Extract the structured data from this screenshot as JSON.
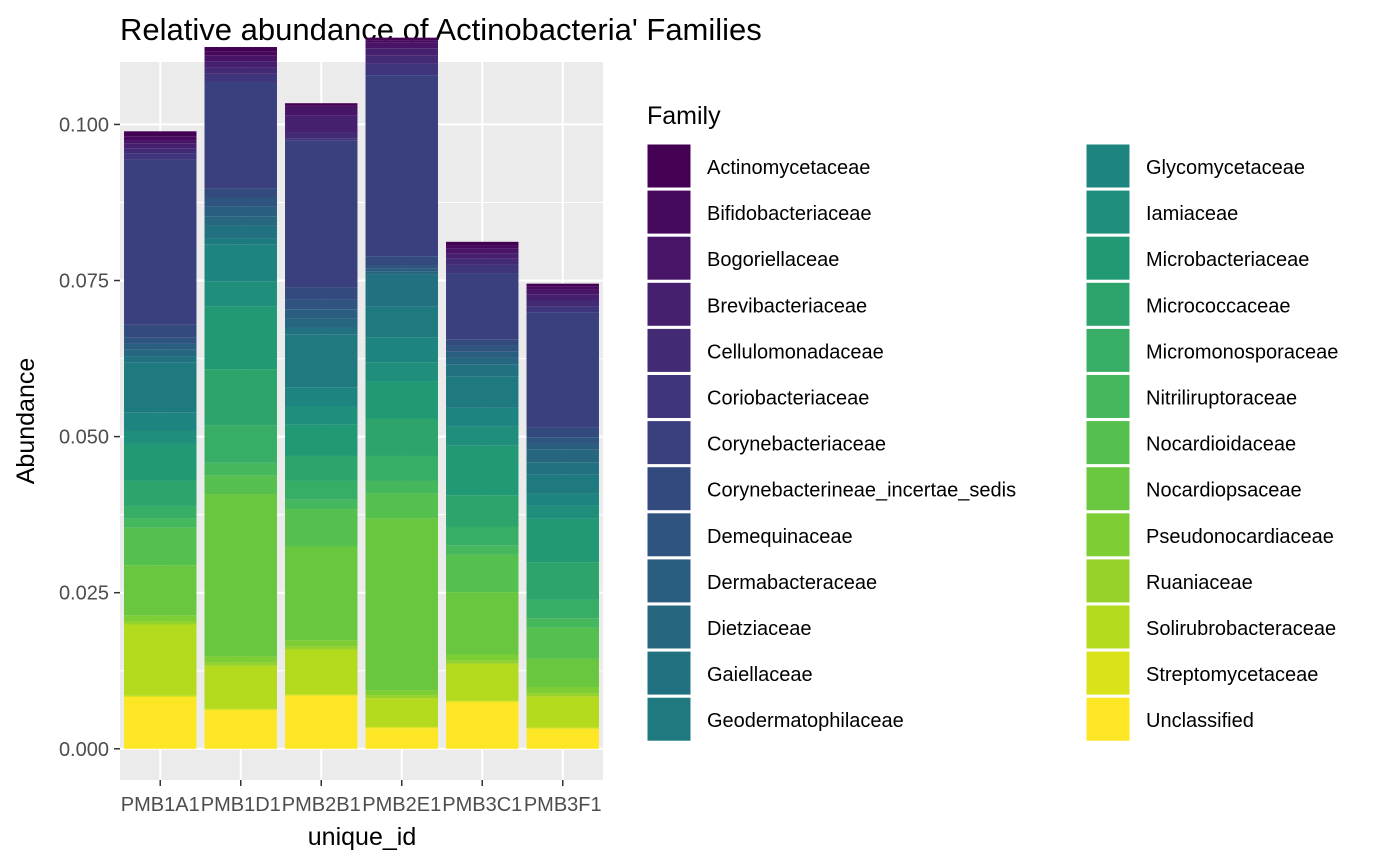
{
  "chart_data": {
    "type": "bar",
    "stacked": true,
    "title": "Relative abundance of Actinobacteria' Families",
    "xlabel": "unique_id",
    "ylabel": "Abundance",
    "ylim": [
      -0.005,
      0.11
    ],
    "yticks": [
      0.0,
      0.025,
      0.05,
      0.075,
      0.1
    ],
    "ytick_labels": [
      "0.000",
      "0.025",
      "0.050",
      "0.075",
      "0.100"
    ],
    "grid": true,
    "legend_position": "right",
    "legend_title": "Family",
    "categories": [
      "PMB1A1",
      "PMB1D1",
      "PMB2B1",
      "PMB2E1",
      "PMB3C1",
      "PMB3F1"
    ],
    "series": [
      {
        "name": "Actinomycetaceae",
        "color": "#440154",
        "values": [
          0.0008,
          0.0007,
          0.0003,
          0.0004,
          0.0006,
          0.0005
        ]
      },
      {
        "name": "Bifidobacteriaceae",
        "color": "#46095E",
        "values": [
          0.0006,
          0.0007,
          0.0003,
          0.0004,
          0.0005,
          0.0005
        ]
      },
      {
        "name": "Bogoriellaceae",
        "color": "#481467",
        "values": [
          0.0005,
          0.0009,
          0.0014,
          0.0009,
          0.0008,
          0.0007
        ]
      },
      {
        "name": "Brevibacteriaceae",
        "color": "#461F6E",
        "values": [
          0.0008,
          0.001,
          0.0027,
          0.0012,
          0.0008,
          0.001
        ]
      },
      {
        "name": "Cellulomonadaceae",
        "color": "#432A75",
        "values": [
          0.0008,
          0.001,
          0.001,
          0.0013,
          0.001,
          0.0009
        ]
      },
      {
        "name": "Coriobacteriaceae",
        "color": "#3E357C",
        "values": [
          0.001,
          0.0013,
          0.0003,
          0.0018,
          0.0013,
          0.001
        ]
      },
      {
        "name": "Corynebacteriaceae",
        "color": "#39407D",
        "values": [
          0.0265,
          0.017,
          0.0235,
          0.029,
          0.0106,
          0.0185
        ]
      },
      {
        "name": "Corynebacterineae_incertae_sedis",
        "color": "#334A7E",
        "values": [
          0.002,
          0.0015,
          0.002,
          0.0015,
          0.001,
          0.0015
        ]
      },
      {
        "name": "Demequinaceae",
        "color": "#2E547F",
        "values": [
          0.001,
          0.0015,
          0.0015,
          0.0005,
          0.001,
          0.001
        ]
      },
      {
        "name": "Dermabacteraceae",
        "color": "#2A5E80",
        "values": [
          0.001,
          0.0015,
          0.0015,
          0.0005,
          0.001,
          0.001
        ]
      },
      {
        "name": "Dietziaceae",
        "color": "#26677F",
        "values": [
          0.001,
          0.0015,
          0.0015,
          0.0005,
          0.001,
          0.002
        ]
      },
      {
        "name": "Gaiellaceae",
        "color": "#227180",
        "values": [
          0.001,
          0.002,
          0.001,
          0.005,
          0.002,
          0.002
        ]
      },
      {
        "name": "Geodermatophilaceae",
        "color": "#1F7A80",
        "values": [
          0.008,
          0.001,
          0.0085,
          0.005,
          0.005,
          0.003
        ]
      },
      {
        "name": "Glycomycetaceae",
        "color": "#1E8480",
        "values": [
          0.003,
          0.006,
          0.003,
          0.004,
          0.003,
          0.002
        ]
      },
      {
        "name": "Iamiaceae",
        "color": "#1F8E7B",
        "values": [
          0.002,
          0.004,
          0.003,
          0.003,
          0.003,
          0.002
        ]
      },
      {
        "name": "Microbacteriaceae",
        "color": "#219974",
        "values": [
          0.006,
          0.01,
          0.005,
          0.006,
          0.008,
          0.007
        ]
      },
      {
        "name": "Micrococcaceae",
        "color": "#2CA46C",
        "values": [
          0.004,
          0.009,
          0.004,
          0.006,
          0.005,
          0.006
        ]
      },
      {
        "name": "Micromonosporaceae",
        "color": "#37AD65",
        "values": [
          0.002,
          0.006,
          0.003,
          0.004,
          0.003,
          0.003
        ]
      },
      {
        "name": "Nitriliruptoraceae",
        "color": "#45B75C",
        "values": [
          0.0015,
          0.002,
          0.0015,
          0.002,
          0.0015,
          0.0015
        ]
      },
      {
        "name": "Nocardioidaceae",
        "color": "#56C04F",
        "values": [
          0.006,
          0.003,
          0.006,
          0.004,
          0.006,
          0.005
        ]
      },
      {
        "name": "Nocardiopsaceae",
        "color": "#69C73F",
        "values": [
          0.008,
          0.026,
          0.015,
          0.0275,
          0.01,
          0.0045
        ]
      },
      {
        "name": "Pseudonocardiaceae",
        "color": "#7DCD34",
        "values": [
          0.001,
          0.001,
          0.001,
          0.0008,
          0.001,
          0.001
        ]
      },
      {
        "name": "Ruaniaceae",
        "color": "#95D22A",
        "values": [
          0.0005,
          0.0005,
          0.0005,
          0.0005,
          0.0005,
          0.0005
        ]
      },
      {
        "name": "Solirubrobacteraceae",
        "color": "#B4DA1E",
        "values": [
          0.0114,
          0.0069,
          0.0072,
          0.0046,
          0.0059,
          0.005
        ]
      },
      {
        "name": "Streptomycetaceae",
        "color": "#DAE319",
        "values": [
          0.0002,
          0.0002,
          0.0002,
          0.0002,
          0.0002,
          0.0002
        ]
      },
      {
        "name": "Unclassified",
        "color": "#FDE725",
        "values": [
          0.0083,
          0.0062,
          0.0085,
          0.0033,
          0.0075,
          0.0032
        ]
      }
    ]
  }
}
